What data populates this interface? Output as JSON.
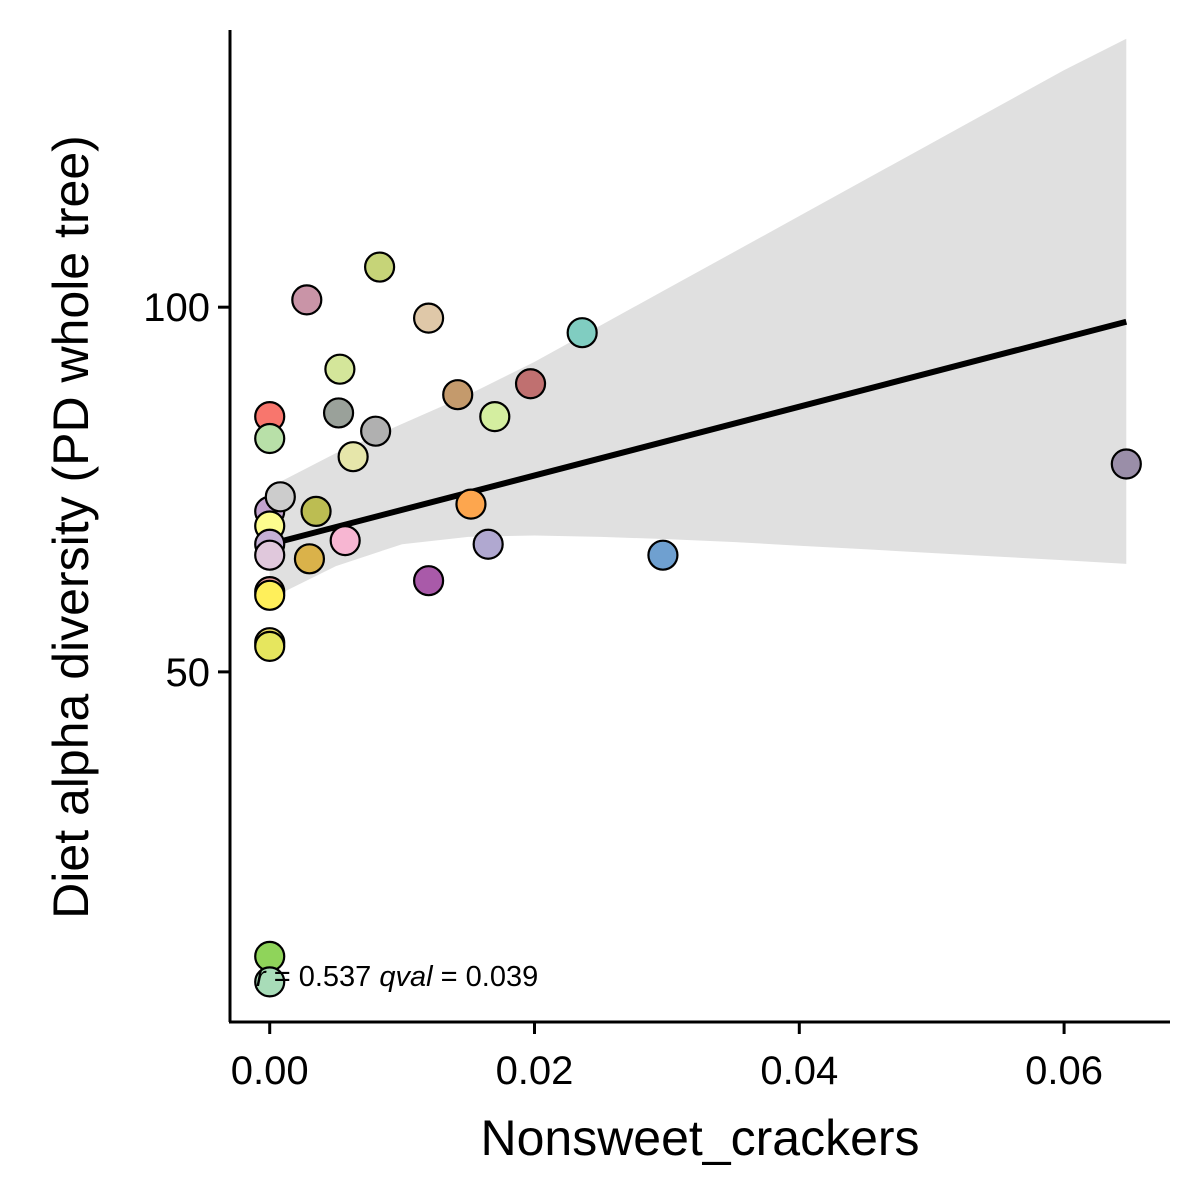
{
  "chart_data": {
    "type": "scatter",
    "xlabel": "Nonsweet_crackers",
    "ylabel": "Diet alpha diversity (PD whole tree)",
    "xlim": [
      -0.003,
      0.068
    ],
    "ylim": [
      2,
      138
    ],
    "x_ticks": [
      {
        "value": 0.0,
        "label": "0.00"
      },
      {
        "value": 0.02,
        "label": "0.02"
      },
      {
        "value": 0.04,
        "label": "0.04"
      },
      {
        "value": 0.06,
        "label": "0.06"
      }
    ],
    "y_ticks": [
      {
        "value": 50,
        "label": "50"
      },
      {
        "value": 100,
        "label": "100"
      }
    ],
    "grid": false,
    "annotation": {
      "r_label": "r",
      "r_value": "= 0.537",
      "q_label": "qval",
      "q_value": "= 0.039"
    },
    "regression_line": {
      "color": "#000000",
      "x": [
        0.0,
        0.0647
      ],
      "y": [
        67.5,
        98.0
      ]
    },
    "confidence_band": {
      "color": "#e0e0e0",
      "x": [
        0.0,
        0.005,
        0.01,
        0.015,
        0.02,
        0.025,
        0.03,
        0.035,
        0.04,
        0.045,
        0.05,
        0.055,
        0.06,
        0.0647
      ],
      "upper": [
        75.3,
        80.0,
        84.0,
        88.0,
        92.5,
        97.5,
        102.5,
        107.5,
        112.5,
        117.5,
        122.5,
        127.5,
        132.5,
        136.8
      ],
      "lower": [
        60.0,
        64.5,
        67.5,
        68.5,
        68.7,
        68.5,
        68.2,
        67.8,
        67.3,
        66.8,
        66.3,
        65.8,
        65.3,
        64.8
      ]
    },
    "points": [
      {
        "x": 0.0,
        "y": 85.0,
        "color": "#f8766d"
      },
      {
        "x": 0.0,
        "y": 82.0,
        "color": "#b8e0a8"
      },
      {
        "x": 0.0,
        "y": 72.0,
        "color": "#c3a3cf"
      },
      {
        "x": 0.0,
        "y": 70.0,
        "color": "#fdfd8e"
      },
      {
        "x": 0.0,
        "y": 67.5,
        "color": "#c5b0d5"
      },
      {
        "x": 0.0,
        "y": 66.0,
        "color": "#e0c8dc"
      },
      {
        "x": 0.0,
        "y": 61.0,
        "color": "#e8a0a0"
      },
      {
        "x": 0.0,
        "y": 60.5,
        "color": "#ffef5a"
      },
      {
        "x": 0.0,
        "y": 54.0,
        "color": "#f0e06a"
      },
      {
        "x": 0.0,
        "y": 53.5,
        "color": "#e6e65e"
      },
      {
        "x": 0.0,
        "y": 11.0,
        "color": "#8fd45a"
      },
      {
        "x": 0.0,
        "y": 7.5,
        "color": "#a8dcb8"
      },
      {
        "x": 0.0008,
        "y": 74.0,
        "color": "#cccccc"
      },
      {
        "x": 0.0028,
        "y": 101.0,
        "color": "#c994a7"
      },
      {
        "x": 0.003,
        "y": 65.5,
        "color": "#dab24a"
      },
      {
        "x": 0.0035,
        "y": 72.0,
        "color": "#bcbd52"
      },
      {
        "x": 0.0052,
        "y": 85.5,
        "color": "#9aa19a"
      },
      {
        "x": 0.0053,
        "y": 91.5,
        "color": "#d4e69a"
      },
      {
        "x": 0.0057,
        "y": 68.0,
        "color": "#f7b6d2"
      },
      {
        "x": 0.0063,
        "y": 79.5,
        "color": "#e6e6aa"
      },
      {
        "x": 0.008,
        "y": 83.0,
        "color": "#b0b0b0"
      },
      {
        "x": 0.0083,
        "y": 105.5,
        "color": "#c6d478"
      },
      {
        "x": 0.012,
        "y": 98.5,
        "color": "#dfc8a8"
      },
      {
        "x": 0.012,
        "y": 62.5,
        "color": "#a95aa9"
      },
      {
        "x": 0.0142,
        "y": 88.0,
        "color": "#c49a6c"
      },
      {
        "x": 0.0152,
        "y": 73.0,
        "color": "#fda64e"
      },
      {
        "x": 0.0165,
        "y": 67.5,
        "color": "#b0a8d0"
      },
      {
        "x": 0.017,
        "y": 85.0,
        "color": "#d4eea0"
      },
      {
        "x": 0.0197,
        "y": 89.5,
        "color": "#c07070"
      },
      {
        "x": 0.0236,
        "y": 96.5,
        "color": "#80cdc1"
      },
      {
        "x": 0.0297,
        "y": 66.0,
        "color": "#6fa0d0"
      },
      {
        "x": 0.0647,
        "y": 78.5,
        "color": "#9a8ea8"
      }
    ]
  }
}
